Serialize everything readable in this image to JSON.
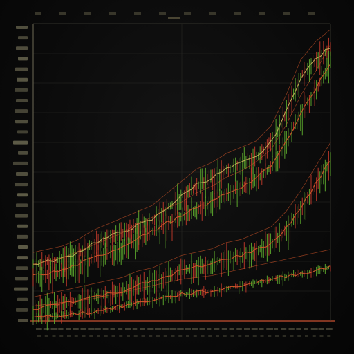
{
  "chart_data": {
    "type": "line",
    "title": "",
    "xlabel": "",
    "ylabel": "",
    "grid": true,
    "legend": "none",
    "tick_labels_legible": false,
    "x": [
      0,
      1,
      2,
      3,
      4,
      5,
      6,
      7,
      8,
      9,
      10,
      11,
      12,
      13,
      14,
      15,
      16,
      17,
      18,
      19,
      20
    ],
    "ylim": [
      0,
      100
    ],
    "series": [
      {
        "values": [
          19,
          20,
          21,
          23,
          26,
          28,
          30,
          32,
          34,
          38,
          42,
          46,
          48,
          51,
          53,
          55,
          60,
          70,
          82,
          88,
          92
        ]
      },
      {
        "values": [
          15,
          16,
          17,
          19,
          21,
          23,
          25,
          28,
          30,
          33,
          35,
          38,
          40,
          43,
          45,
          48,
          52,
          60,
          70,
          78,
          87
        ]
      },
      {
        "values": [
          4,
          5,
          6,
          7,
          8,
          9,
          10,
          12,
          13,
          15,
          17,
          18,
          19,
          21,
          22,
          24,
          26,
          31,
          38,
          46,
          54
        ]
      },
      {
        "values": [
          1,
          1.5,
          2,
          2.5,
          3,
          4,
          5,
          6,
          7,
          8,
          9,
          9.5,
          10,
          11,
          12,
          13,
          14,
          15,
          16,
          17,
          18
        ]
      }
    ],
    "colors": {
      "background": "#0b0b0b",
      "grid": "#2a2a26",
      "up": "#5fae2e",
      "down": "#c0392b",
      "trend": "#d7562a",
      "guide": "#c9b25a"
    }
  }
}
